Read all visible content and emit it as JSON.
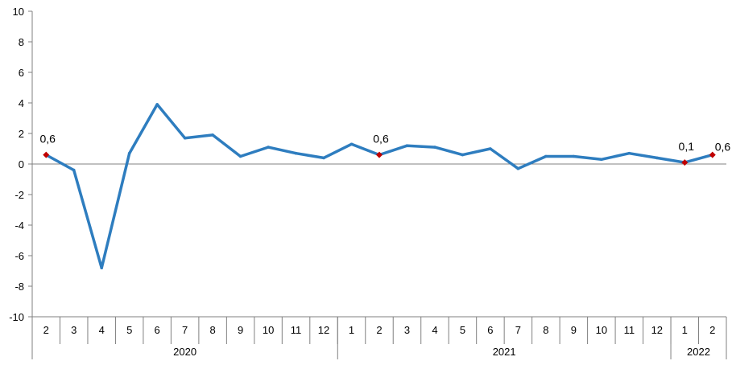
{
  "chart_data": {
    "type": "line",
    "ylim": [
      -10,
      10
    ],
    "yticks": [
      "10",
      "8",
      "6",
      "4",
      "2",
      "0",
      "-2",
      "-4",
      "-6",
      "-8",
      "-10"
    ],
    "ytick_values": [
      10,
      8,
      6,
      4,
      2,
      0,
      -2,
      -4,
      -6,
      -8,
      -10
    ],
    "categories": [
      "2",
      "3",
      "4",
      "5",
      "6",
      "7",
      "8",
      "9",
      "10",
      "11",
      "12",
      "1",
      "2",
      "3",
      "4",
      "5",
      "6",
      "7",
      "8",
      "9",
      "10",
      "11",
      "12",
      "1",
      "2"
    ],
    "year_groups": [
      {
        "label": "2020",
        "count": 11
      },
      {
        "label": "2021",
        "count": 12
      },
      {
        "label": "2022",
        "count": 2
      }
    ],
    "series": [
      {
        "color": "#2e7dbf",
        "values": [
          0.6,
          -0.4,
          -6.8,
          0.7,
          3.9,
          1.7,
          1.9,
          0.5,
          1.1,
          0.7,
          0.4,
          1.3,
          0.6,
          1.2,
          1.1,
          0.6,
          1.0,
          -0.3,
          0.5,
          0.5,
          0.3,
          0.7,
          0.4,
          0.1,
          0.6
        ]
      }
    ],
    "marker_color": "#c00000",
    "annotations": [
      {
        "index": 0,
        "text": "0,6"
      },
      {
        "index": 12,
        "text": "0,6"
      },
      {
        "index": 23,
        "text": "0,1"
      },
      {
        "index": 24,
        "text": "0,6"
      }
    ],
    "grid": false
  }
}
